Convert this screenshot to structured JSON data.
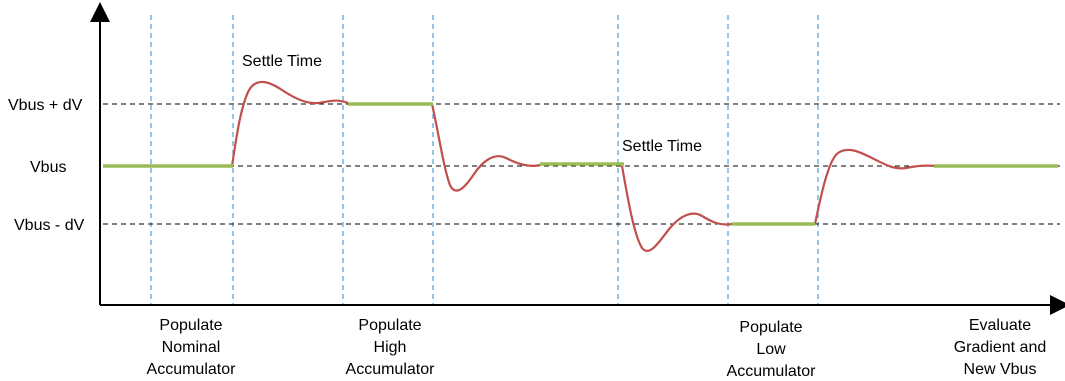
{
  "levels": {
    "high": "Vbus + dV",
    "nominal": "Vbus",
    "low": "Vbus - dV"
  },
  "annotations": {
    "settle_time_1": "Settle Time",
    "settle_time_2": "Settle Time"
  },
  "phases": [
    {
      "lines": [
        "Populate",
        "Nominal",
        "Accumulator"
      ]
    },
    {
      "lines": [
        "Populate",
        "High",
        "Accumulator"
      ]
    },
    {
      "lines": [
        "Populate",
        "Low",
        "Accumulator"
      ]
    },
    {
      "lines": [
        "Evaluate",
        "Gradient and",
        "New Vbus"
      ]
    }
  ],
  "colors": {
    "waveform": "#c0504d",
    "hold_segment": "#9bbb59",
    "phase_divider": "#5b9bd5",
    "level_line": "#000000",
    "axis": "#000000"
  }
}
